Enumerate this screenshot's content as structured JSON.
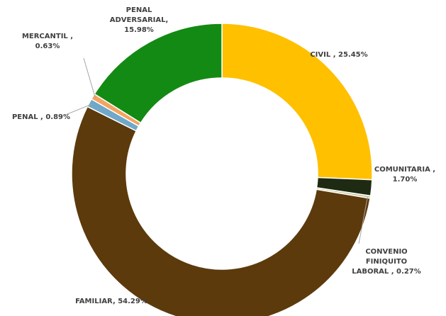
{
  "chart_data": {
    "type": "pie",
    "variant": "donut",
    "title": "",
    "legend": "none",
    "slices": [
      {
        "name": "CIVIL",
        "value": 25.45,
        "label": "CIVIL , 25.45%",
        "color": "#FFC000"
      },
      {
        "name": "COMUNITARIA",
        "value": 1.7,
        "label": "COMUNITARIA , 1.70%",
        "color": "#1F2A12"
      },
      {
        "name": "CONVENIO FINIQUITO LABORAL",
        "value": 0.27,
        "label": "CONVENIO FINIQUITO LABORAL , 0.27%",
        "color": "#C9C99A"
      },
      {
        "name": "FAMILIAR",
        "value": 54.29,
        "label": "FAMILIAR, 54.29%",
        "color": "#5C3A0C"
      },
      {
        "name": "PENAL",
        "value": 0.89,
        "label": "PENAL , 0.89%",
        "color": "#6FA8C8"
      },
      {
        "name": "MERCANTIL",
        "value": 0.63,
        "label": "MERCANTIL , 0.63%",
        "color": "#F4A460"
      },
      {
        "name": "PENAL ADVERSARIAL",
        "value": 15.98,
        "label": "PENAL ADVERSARIAL, 15.98%",
        "color": "#138A13"
      }
    ]
  }
}
